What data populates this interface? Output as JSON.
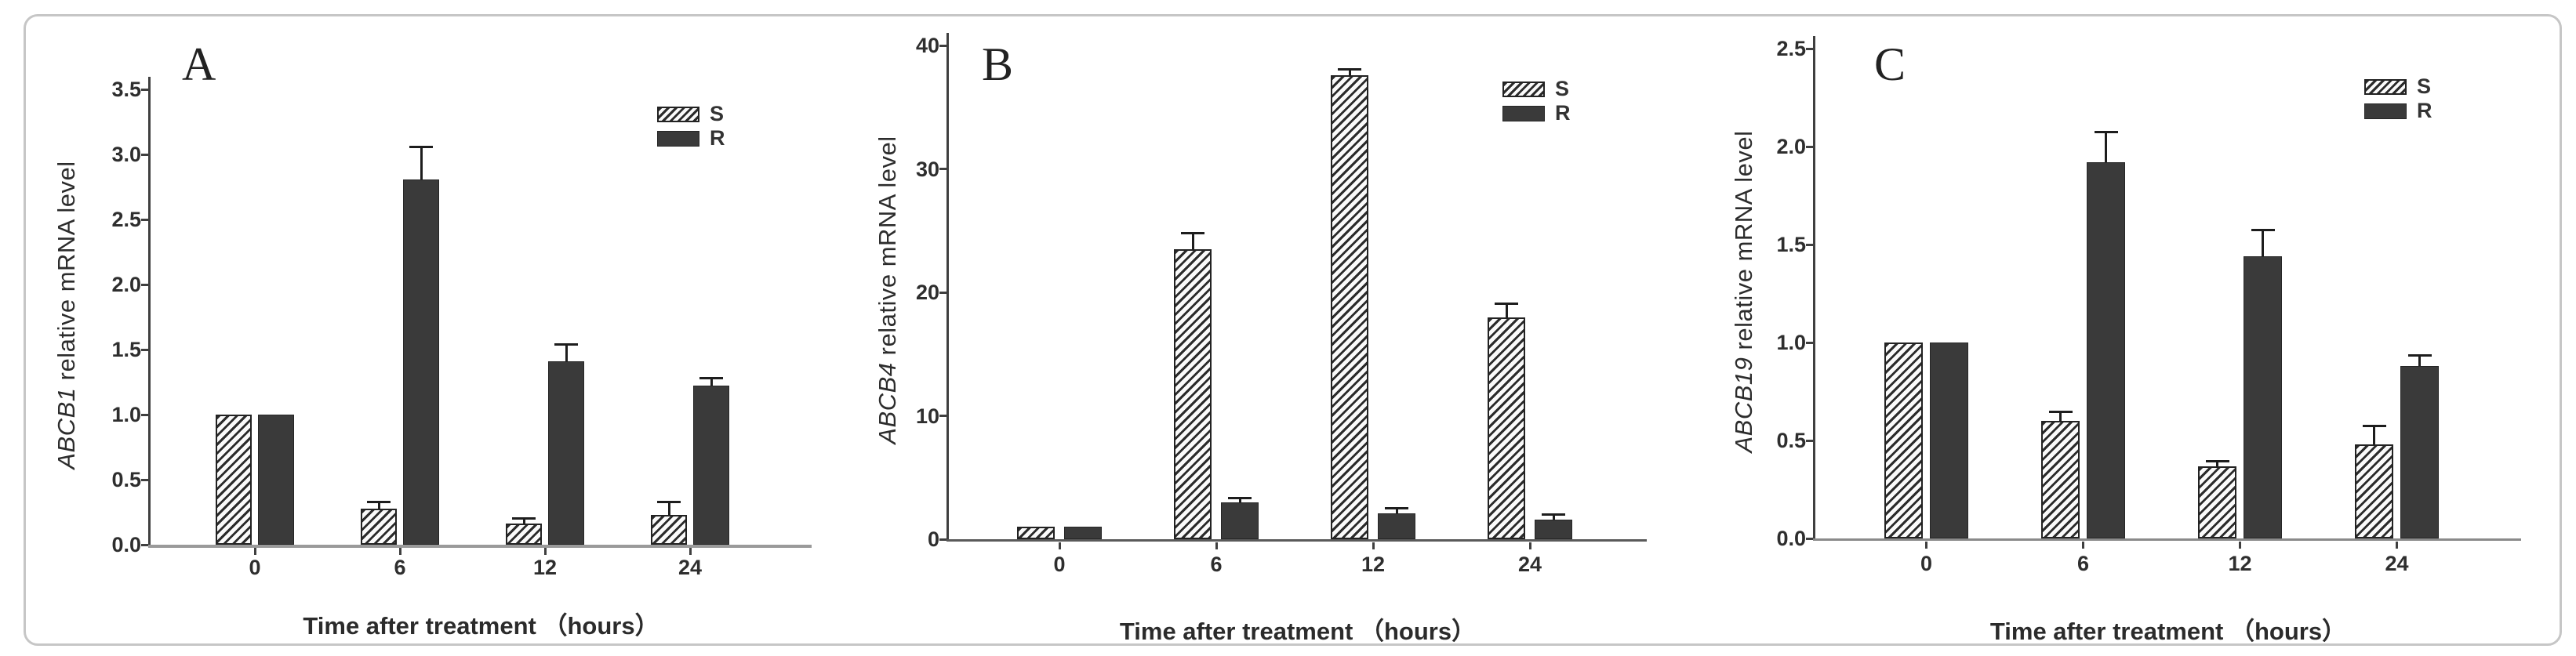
{
  "colors": {
    "solid_bar": "#3a3a3a",
    "hatch_line": "#2b2b2b",
    "axis": "#3f3f3f",
    "baseline_gray": "#9a9a9a",
    "frame_border": "#c6c6c6"
  },
  "chart_data": [
    {
      "type": "bar",
      "panel_label": "A",
      "ylabel_gene": "ABCB1",
      "ylabel_rest": " relative mRNA level",
      "xlabel": "Time after treatment （hours）",
      "categories": [
        "0",
        "6",
        "12",
        "24"
      ],
      "series": [
        {
          "name": "S",
          "pattern": "hatched",
          "values": [
            1.0,
            0.28,
            0.16,
            0.23
          ],
          "errors": [
            0,
            0.04,
            0.03,
            0.09
          ]
        },
        {
          "name": "R",
          "pattern": "solid",
          "values": [
            1.0,
            2.81,
            1.41,
            1.22
          ],
          "errors": [
            0,
            0.24,
            0.12,
            0.05
          ]
        }
      ],
      "ylim": [
        0,
        3.5
      ],
      "yticks": [
        "0.0",
        "0.5",
        "1.0",
        "1.5",
        "2.0",
        "2.5",
        "3.0",
        "3.5"
      ],
      "legend_position": "top-right",
      "grid": false
    },
    {
      "type": "bar",
      "panel_label": "B",
      "ylabel_gene": "ABCB4",
      "ylabel_rest": " relative mRNA level",
      "xlabel": "Time after treatment （hours）",
      "categories": [
        "0",
        "6",
        "12",
        "24"
      ],
      "series": [
        {
          "name": "S",
          "pattern": "hatched",
          "values": [
            1.0,
            23.5,
            37.6,
            18.0
          ],
          "errors": [
            0,
            1.2,
            0.4,
            1.0
          ]
        },
        {
          "name": "R",
          "pattern": "solid",
          "values": [
            1.0,
            3.0,
            2.1,
            1.6
          ],
          "errors": [
            0,
            0.25,
            0.3,
            0.3
          ]
        }
      ],
      "ylim": [
        0,
        40
      ],
      "yticks": [
        "0",
        "10",
        "20",
        "30",
        "40"
      ],
      "legend_position": "top-right",
      "grid": false
    },
    {
      "type": "bar",
      "panel_label": "C",
      "ylabel_gene": "ABCB19",
      "ylabel_rest": " relative mRNA level",
      "xlabel": "Time after treatment （hours）",
      "categories": [
        "0",
        "6",
        "12",
        "24"
      ],
      "series": [
        {
          "name": "S",
          "pattern": "hatched",
          "values": [
            1.0,
            0.6,
            0.37,
            0.48
          ],
          "errors": [
            0,
            0.04,
            0.02,
            0.09
          ]
        },
        {
          "name": "R",
          "pattern": "solid",
          "values": [
            1.0,
            1.92,
            1.44,
            0.88
          ],
          "errors": [
            0,
            0.15,
            0.13,
            0.05
          ]
        }
      ],
      "ylim": [
        0,
        2.5
      ],
      "yticks": [
        "0.0",
        "0.5",
        "1.0",
        "1.5",
        "2.0",
        "2.5"
      ],
      "legend_position": "top-right",
      "grid": false
    }
  ]
}
